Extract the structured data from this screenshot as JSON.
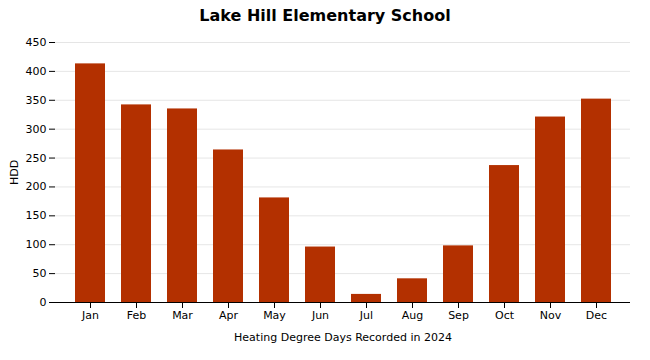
{
  "chart_data": {
    "type": "bar",
    "title": "Lake Hill Elementary School",
    "xlabel": "Heating Degree Days Recorded in 2024",
    "ylabel": "HDD",
    "categories": [
      "Jan",
      "Feb",
      "Mar",
      "Apr",
      "May",
      "Jun",
      "Jul",
      "Aug",
      "Sep",
      "Oct",
      "Nov",
      "Dec"
    ],
    "values": [
      413,
      342,
      335,
      264,
      181,
      96,
      14,
      41,
      98,
      237,
      321,
      352
    ],
    "color": "#b33000",
    "ylim": [
      0,
      450
    ],
    "yticks": [
      0,
      50,
      100,
      150,
      200,
      250,
      300,
      350,
      400,
      450
    ],
    "grid": true
  }
}
